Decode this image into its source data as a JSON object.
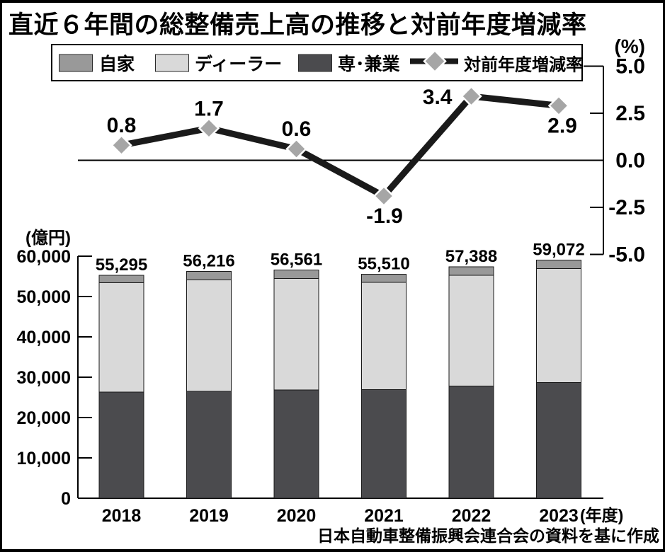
{
  "title": "直近６年間の総整備売上高の推移と対前年度増減率",
  "caption": "日本自動車整備振興会連合会の資料を基に作成",
  "left_axis_unit": "(億円)",
  "right_axis_unit": "(%)",
  "year_axis_suffix": "(年度)",
  "colors": {
    "jika": "#999999",
    "dealer": "#d9d9d9",
    "sen_kengyo": "#4b4b4e",
    "line": "#1a1a1a",
    "marker_fill": "#a6a6a6",
    "marker_stroke": "#ffffff"
  },
  "legend": {
    "items": [
      {
        "label": "自家",
        "swatch": "jika"
      },
      {
        "label": "ディーラー",
        "swatch": "dealer"
      },
      {
        "label": "専･兼業",
        "swatch": "sen_kengyo"
      },
      {
        "label": "対前年度増減率",
        "swatch": "line-marker"
      }
    ]
  },
  "chart_data": {
    "type": "combo",
    "categories": [
      "2018",
      "2019",
      "2020",
      "2021",
      "2022",
      "2023"
    ],
    "bar": {
      "type": "stacked-bar",
      "unit": "億円",
      "ylim": [
        0,
        60000
      ],
      "ytick_labels": [
        "0",
        "10,000",
        "20,000",
        "30,000",
        "40,000",
        "50,000",
        "60,000"
      ],
      "ytick_values": [
        0,
        10000,
        20000,
        30000,
        40000,
        50000,
        60000
      ],
      "series": [
        {
          "name": "専･兼業",
          "color": "sen_kengyo",
          "values": [
            26300,
            26500,
            26800,
            26900,
            27800,
            28700
          ]
        },
        {
          "name": "ディーラー",
          "color": "dealer",
          "values": [
            27100,
            27600,
            27700,
            26600,
            27500,
            28200
          ]
        },
        {
          "name": "自家",
          "color": "jika",
          "values": [
            1895,
            2116,
            2061,
            2010,
            2088,
            2172
          ]
        }
      ],
      "total_labels": [
        "55,295",
        "56,216",
        "56,561",
        "55,510",
        "57,388",
        "59,072"
      ]
    },
    "line": {
      "type": "line",
      "name": "対前年度増減率",
      "unit": "%",
      "ylim": [
        -5.0,
        5.0
      ],
      "ytick_labels": [
        "5.0",
        "2.5",
        "0.0",
        "-2.5",
        "-5.0"
      ],
      "ytick_values": [
        5.0,
        2.5,
        0.0,
        -2.5,
        -5.0
      ],
      "values": [
        0.8,
        1.7,
        0.6,
        -1.9,
        3.4,
        2.9
      ],
      "value_labels": [
        "0.8",
        "1.7",
        "0.6",
        "-1.9",
        "3.4",
        "2.9"
      ]
    }
  }
}
